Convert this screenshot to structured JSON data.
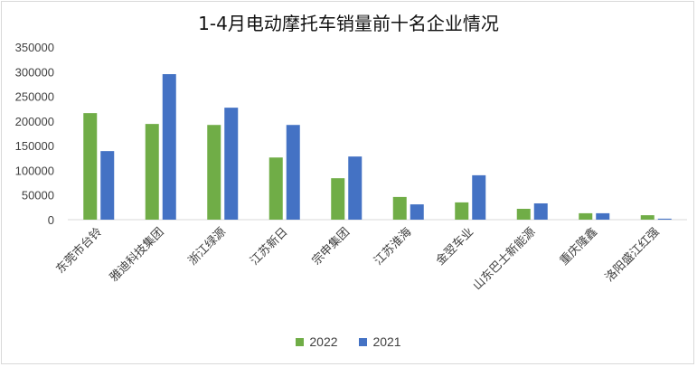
{
  "chart_data": {
    "type": "bar",
    "title": "1-4月电动摩托车销量前十名企业情况",
    "categories": [
      "东莞市台铃",
      "雅迪科技集团",
      "浙江绿源",
      "江苏新日",
      "宗申集团",
      "江苏淮海",
      "金翌车业",
      "山东巴士新能源",
      "重庆隆鑫",
      "洛阳盛江红强"
    ],
    "series": [
      {
        "name": "2022",
        "color": "#70ad47",
        "values": [
          216000,
          194000,
          192000,
          126000,
          84000,
          46000,
          35000,
          22000,
          13000,
          9000
        ]
      },
      {
        "name": "2021",
        "color": "#4472c4",
        "values": [
          139000,
          295000,
          227000,
          192000,
          128000,
          31000,
          90000,
          33000,
          13000,
          2000
        ]
      }
    ],
    "yticks": [
      "0",
      "50000",
      "100000",
      "150000",
      "200000",
      "250000",
      "300000",
      "350000"
    ],
    "ylim": [
      0,
      350000
    ],
    "legend_position": "bottom"
  }
}
